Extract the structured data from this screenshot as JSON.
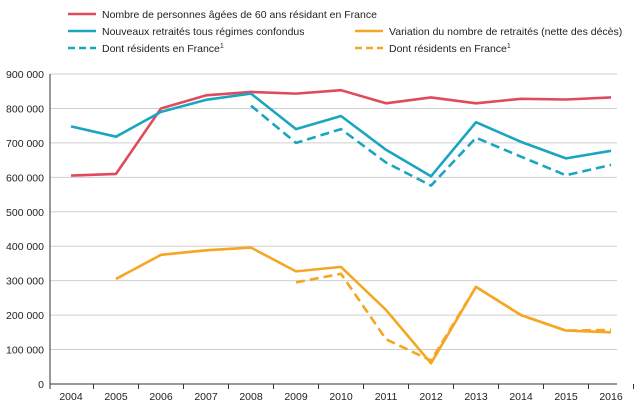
{
  "chart_data": {
    "type": "line",
    "title": "",
    "xlabel": "",
    "ylabel": "",
    "ylim": [
      0,
      900000
    ],
    "yticks": [
      0,
      100000,
      200000,
      300000,
      400000,
      500000,
      600000,
      700000,
      800000,
      900000
    ],
    "ytick_labels": [
      "0",
      "100 000",
      "200 000",
      "300 000",
      "400 000",
      "500 000",
      "600 000",
      "700 000",
      "800 000",
      "900 000"
    ],
    "categories": [
      "2004",
      "2005",
      "2006",
      "2007",
      "2008",
      "2009",
      "2010",
      "2011",
      "2012",
      "2013",
      "2014",
      "2015",
      "2016"
    ],
    "grid": "horizontal",
    "legend_position": "top",
    "series": [
      {
        "name": "Nombre de personnes âgées de 60 ans résidant en France",
        "name_sup": "",
        "color": "#e04a5c",
        "dash": false,
        "x": [
          "2004",
          "2005",
          "2006",
          "2007",
          "2008",
          "2009",
          "2010",
          "2011",
          "2012",
          "2013",
          "2014",
          "2015",
          "2016"
        ],
        "values": [
          605000,
          610000,
          800000,
          838000,
          848000,
          843000,
          853000,
          815000,
          832000,
          815000,
          828000,
          826000,
          832000
        ]
      },
      {
        "name": "Nouveaux retraités tous régimes confondus",
        "name_sup": "",
        "color": "#1aa6bf",
        "dash": false,
        "x": [
          "2004",
          "2005",
          "2006",
          "2007",
          "2008",
          "2009",
          "2010",
          "2011",
          "2012",
          "2013",
          "2014",
          "2015",
          "2016"
        ],
        "values": [
          748000,
          718000,
          790000,
          825000,
          843000,
          740000,
          778000,
          680000,
          603000,
          760000,
          703000,
          655000,
          677000
        ]
      },
      {
        "name": "Dont résidents en France",
        "name_sup": "1",
        "color": "#1aa6bf",
        "dash": true,
        "x": [
          "2008",
          "2009",
          "2010",
          "2011",
          "2012",
          "2013",
          "2014",
          "2015",
          "2016"
        ],
        "values": [
          808000,
          700000,
          740000,
          643000,
          576000,
          715000,
          660000,
          606000,
          636000
        ]
      },
      {
        "name": "Variation du nombre de retraités (nette des décès)",
        "name_sup": "",
        "color": "#f5a623",
        "dash": false,
        "x": [
          "2005",
          "2006",
          "2007",
          "2008",
          "2009",
          "2010",
          "2011",
          "2012",
          "2013",
          "2014",
          "2015",
          "2016"
        ],
        "values": [
          305000,
          375000,
          388000,
          396000,
          327000,
          340000,
          215000,
          60000,
          282000,
          200000,
          155000,
          150000
        ]
      },
      {
        "name": "Dont résidents en France",
        "name_sup": "1",
        "color": "#f5a623",
        "dash": true,
        "x": [
          "2009",
          "2010",
          "2011",
          "2012",
          "2013",
          "2014",
          "2015",
          "2016"
        ],
        "values": [
          295000,
          320000,
          130000,
          68000,
          282000,
          200000,
          155000,
          157000
        ]
      }
    ]
  }
}
